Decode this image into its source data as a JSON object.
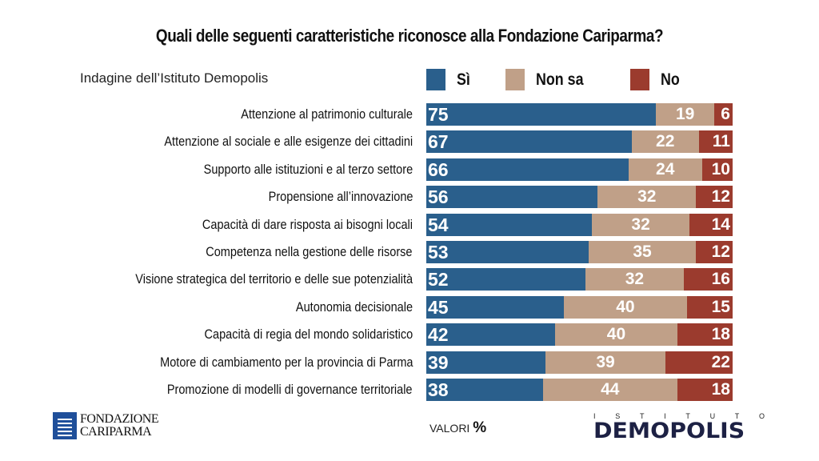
{
  "header": {
    "title": "Quali delle seguenti caratteristiche riconosce alla Fondazione Cariparma?",
    "subtitle": "Indagine dell’Istituto Demopolis"
  },
  "legend": [
    {
      "label": "Sì",
      "color": "#2a5f8c"
    },
    {
      "label": "Non sa",
      "color": "#c0a088"
    },
    {
      "label": "No",
      "color": "#9b3b2e"
    }
  ],
  "chart_data": {
    "type": "bar",
    "orientation": "horizontal",
    "stacked": true,
    "title": "Quali delle seguenti caratteristiche riconosce alla Fondazione Cariparma?",
    "subtitle": "Indagine dell’Istituto Demopolis",
    "xlabel": "",
    "ylabel": "",
    "unit": "VALORI %",
    "xlim": [
      0,
      100
    ],
    "grid": false,
    "legend_position": "top-right",
    "categories": [
      "Attenzione al patrimonio culturale",
      "Attenzione al sociale e alle esigenze dei cittadini",
      "Supporto alle istituzioni e al terzo settore",
      "Propensione all’innovazione",
      "Capacità di dare risposta ai bisogni locali",
      "Competenza nella gestione delle risorse",
      "Visione strategica del territorio e delle sue potenzialità",
      "Autonomia decisionale",
      "Capacità di regia del mondo solidaristico",
      "Motore di cambiamento per la provincia di Parma",
      "Promozione di modelli di governance territoriale"
    ],
    "series": [
      {
        "name": "Sì",
        "color": "#2a5f8c",
        "values": [
          75,
          67,
          66,
          56,
          54,
          53,
          52,
          45,
          42,
          39,
          38
        ]
      },
      {
        "name": "Non sa",
        "color": "#c0a088",
        "values": [
          19,
          22,
          24,
          32,
          32,
          35,
          32,
          40,
          40,
          39,
          44
        ]
      },
      {
        "name": "No",
        "color": "#9b3b2e",
        "values": [
          6,
          11,
          10,
          12,
          14,
          12,
          16,
          15,
          18,
          22,
          18
        ]
      }
    ]
  },
  "footer": {
    "values_label": "VALORI",
    "values_symbol": "%",
    "logo_left_line1": "FONDAZIONE",
    "logo_left_line2": "CARIPARMA",
    "logo_right_top": [
      "I",
      "S",
      "T",
      "I",
      "T",
      "U",
      "T",
      "O"
    ],
    "logo_right_main": "DEMOPOLIS"
  }
}
